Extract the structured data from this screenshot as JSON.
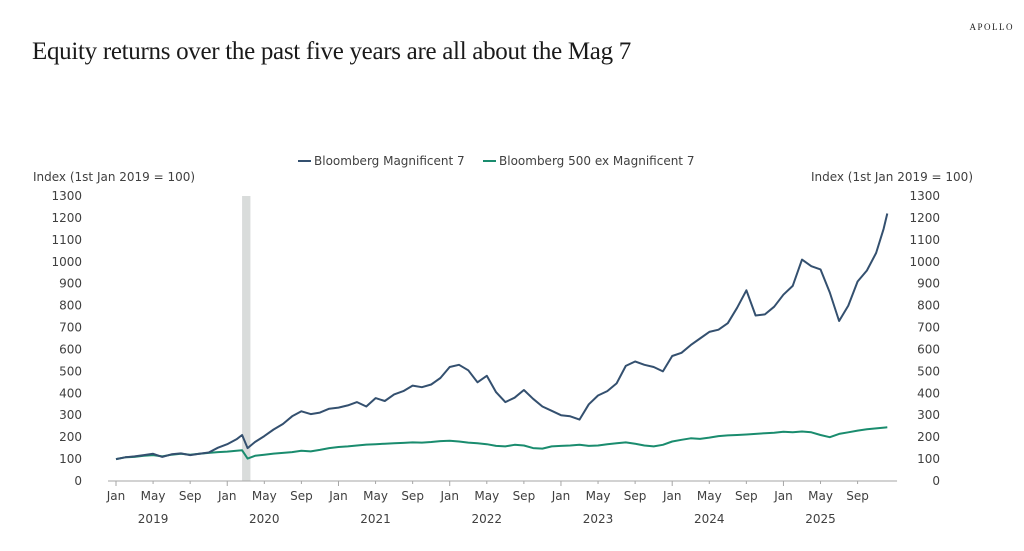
{
  "header": {
    "brand": "APOLLO",
    "title": "Equity returns over the past five years are all about the Mag 7"
  },
  "chart_data": {
    "type": "line",
    "title": "Equity returns over the past five years are all about the Mag 7",
    "ylabel_left": "Index (1st Jan 2019 = 100)",
    "ylabel_right": "Index (1st Jan 2019 = 100)",
    "ylim": [
      0,
      1300
    ],
    "yticks": [
      "0",
      "100",
      "200",
      "300",
      "400",
      "500",
      "600",
      "700",
      "800",
      "900",
      "1000",
      "1100",
      "1200",
      "1300"
    ],
    "xlim_months": [
      0,
      83.5
    ],
    "xticks": [
      {
        "m": 0,
        "label": "Jan"
      },
      {
        "m": 4,
        "label": "May"
      },
      {
        "m": 8,
        "label": "Sep"
      },
      {
        "m": 12,
        "label": "Jan"
      },
      {
        "m": 16,
        "label": "May"
      },
      {
        "m": 20,
        "label": "Sep"
      },
      {
        "m": 24,
        "label": "Jan"
      },
      {
        "m": 28,
        "label": "May"
      },
      {
        "m": 32,
        "label": "Sep"
      },
      {
        "m": 36,
        "label": "Jan"
      },
      {
        "m": 40,
        "label": "May"
      },
      {
        "m": 44,
        "label": "Sep"
      },
      {
        "m": 48,
        "label": "Jan"
      },
      {
        "m": 52,
        "label": "May"
      },
      {
        "m": 56,
        "label": "Sep"
      },
      {
        "m": 60,
        "label": "Jan"
      },
      {
        "m": 64,
        "label": "May"
      },
      {
        "m": 68,
        "label": "Sep"
      },
      {
        "m": 72,
        "label": "Jan"
      },
      {
        "m": 76,
        "label": "May"
      },
      {
        "m": 80,
        "label": "Sep"
      }
    ],
    "year_labels": [
      {
        "m": 4,
        "label": "2019"
      },
      {
        "m": 16,
        "label": "2020"
      },
      {
        "m": 28,
        "label": "2021"
      },
      {
        "m": 40,
        "label": "2022"
      },
      {
        "m": 52,
        "label": "2023"
      },
      {
        "m": 64,
        "label": "2024"
      },
      {
        "m": 76,
        "label": "2025"
      }
    ],
    "shaded_regions": [
      {
        "from_month": 13.6,
        "to_month": 14.5,
        "label": "recession"
      }
    ],
    "legend": {
      "position": "top-center"
    },
    "grid": false,
    "x_unit": "months since Jan 2019",
    "series": [
      {
        "name": "Bloomberg Magnificent 7",
        "color": "#34506f",
        "points": [
          [
            0,
            100
          ],
          [
            1,
            108
          ],
          [
            2,
            112
          ],
          [
            3,
            118
          ],
          [
            4,
            124
          ],
          [
            5,
            110
          ],
          [
            6,
            122
          ],
          [
            7,
            126
          ],
          [
            8,
            118
          ],
          [
            9,
            124
          ],
          [
            10,
            130
          ],
          [
            11,
            152
          ],
          [
            12,
            168
          ],
          [
            13,
            190
          ],
          [
            13.6,
            210
          ],
          [
            14.2,
            150
          ],
          [
            15,
            178
          ],
          [
            16,
            205
          ],
          [
            17,
            235
          ],
          [
            18,
            260
          ],
          [
            19,
            295
          ],
          [
            20,
            318
          ],
          [
            21,
            305
          ],
          [
            22,
            312
          ],
          [
            23,
            330
          ],
          [
            24,
            335
          ],
          [
            25,
            345
          ],
          [
            26,
            360
          ],
          [
            27,
            340
          ],
          [
            28,
            378
          ],
          [
            29,
            365
          ],
          [
            30,
            395
          ],
          [
            31,
            410
          ],
          [
            32,
            435
          ],
          [
            33,
            428
          ],
          [
            34,
            440
          ],
          [
            35,
            470
          ],
          [
            36,
            520
          ],
          [
            37,
            530
          ],
          [
            38,
            505
          ],
          [
            39,
            450
          ],
          [
            40,
            480
          ],
          [
            41,
            405
          ],
          [
            42,
            360
          ],
          [
            43,
            380
          ],
          [
            44,
            415
          ],
          [
            45,
            375
          ],
          [
            46,
            340
          ],
          [
            47,
            320
          ],
          [
            48,
            300
          ],
          [
            49,
            295
          ],
          [
            50,
            280
          ],
          [
            51,
            350
          ],
          [
            52,
            390
          ],
          [
            53,
            410
          ],
          [
            54,
            445
          ],
          [
            55,
            525
          ],
          [
            56,
            545
          ],
          [
            57,
            530
          ],
          [
            58,
            520
          ],
          [
            59,
            500
          ],
          [
            60,
            570
          ],
          [
            61,
            585
          ],
          [
            62,
            620
          ],
          [
            63,
            650
          ],
          [
            64,
            680
          ],
          [
            65,
            690
          ],
          [
            66,
            720
          ],
          [
            67,
            790
          ],
          [
            68,
            870
          ],
          [
            69,
            755
          ],
          [
            70,
            760
          ],
          [
            71,
            795
          ],
          [
            72,
            850
          ],
          [
            73,
            890
          ],
          [
            74,
            1010
          ],
          [
            75,
            980
          ],
          [
            76,
            965
          ],
          [
            77,
            860
          ],
          [
            78,
            730
          ],
          [
            79,
            800
          ],
          [
            80,
            910
          ],
          [
            81,
            960
          ],
          [
            82,
            1040
          ],
          [
            82.8,
            1150
          ],
          [
            83.2,
            1220
          ]
        ]
      },
      {
        "name": "Bloomberg 500 ex Magnificent 7",
        "color": "#1a8c6e",
        "points": [
          [
            0,
            100
          ],
          [
            1,
            108
          ],
          [
            2,
            110
          ],
          [
            3,
            115
          ],
          [
            4,
            118
          ],
          [
            5,
            112
          ],
          [
            6,
            120
          ],
          [
            7,
            124
          ],
          [
            8,
            120
          ],
          [
            9,
            124
          ],
          [
            10,
            128
          ],
          [
            11,
            132
          ],
          [
            12,
            134
          ],
          [
            13,
            138
          ],
          [
            13.6,
            140
          ],
          [
            14.2,
            102
          ],
          [
            15,
            115
          ],
          [
            16,
            120
          ],
          [
            17,
            125
          ],
          [
            18,
            128
          ],
          [
            19,
            132
          ],
          [
            20,
            138
          ],
          [
            21,
            135
          ],
          [
            22,
            142
          ],
          [
            23,
            150
          ],
          [
            24,
            155
          ],
          [
            25,
            158
          ],
          [
            26,
            162
          ],
          [
            27,
            166
          ],
          [
            28,
            168
          ],
          [
            29,
            170
          ],
          [
            30,
            172
          ],
          [
            31,
            174
          ],
          [
            32,
            176
          ],
          [
            33,
            175
          ],
          [
            34,
            178
          ],
          [
            35,
            182
          ],
          [
            36,
            184
          ],
          [
            37,
            180
          ],
          [
            38,
            175
          ],
          [
            39,
            172
          ],
          [
            40,
            168
          ],
          [
            41,
            160
          ],
          [
            42,
            158
          ],
          [
            43,
            165
          ],
          [
            44,
            162
          ],
          [
            45,
            150
          ],
          [
            46,
            148
          ],
          [
            47,
            158
          ],
          [
            48,
            160
          ],
          [
            49,
            162
          ],
          [
            50,
            165
          ],
          [
            51,
            160
          ],
          [
            52,
            162
          ],
          [
            53,
            168
          ],
          [
            54,
            172
          ],
          [
            55,
            176
          ],
          [
            56,
            170
          ],
          [
            57,
            162
          ],
          [
            58,
            158
          ],
          [
            59,
            165
          ],
          [
            60,
            180
          ],
          [
            61,
            188
          ],
          [
            62,
            195
          ],
          [
            63,
            192
          ],
          [
            64,
            198
          ],
          [
            65,
            205
          ],
          [
            66,
            208
          ],
          [
            67,
            210
          ],
          [
            68,
            212
          ],
          [
            69,
            215
          ],
          [
            70,
            218
          ],
          [
            71,
            220
          ],
          [
            72,
            225
          ],
          [
            73,
            222
          ],
          [
            74,
            226
          ],
          [
            75,
            222
          ],
          [
            76,
            210
          ],
          [
            77,
            200
          ],
          [
            78,
            215
          ],
          [
            79,
            222
          ],
          [
            80,
            230
          ],
          [
            81,
            236
          ],
          [
            82,
            240
          ],
          [
            83,
            244
          ],
          [
            83.2,
            245
          ]
        ]
      }
    ]
  }
}
